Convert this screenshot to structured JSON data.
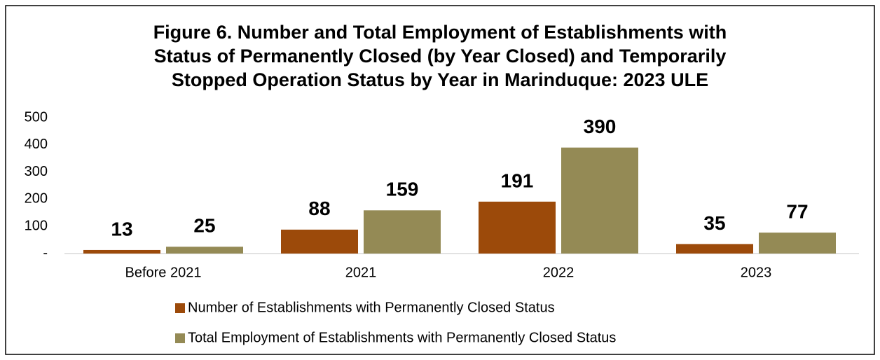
{
  "chart_data": {
    "type": "bar",
    "title": [
      "Figure 6. Number and Total Employment of Establishments with",
      "Status of Permanently Closed (by Year Closed) and Temporarily",
      "Stopped Operation Status by Year in Marinduque: 2023 ULE"
    ],
    "categories": [
      "Before 2021",
      "2021",
      "2022",
      "2023"
    ],
    "series": [
      {
        "name": "Number of Establishments with Permanently Closed Status",
        "color": "#9c4a0a",
        "values": [
          13,
          88,
          191,
          35
        ]
      },
      {
        "name": "Total Employment of Establishments with Permanently Closed Status",
        "color": "#948a55",
        "values": [
          25,
          159,
          390,
          77
        ]
      }
    ],
    "ylim": [
      0,
      500
    ],
    "yticks": [
      {
        "value": 0,
        "label": "-"
      },
      100,
      200,
      300,
      400,
      500
    ],
    "grid": false,
    "legend": "bottom"
  }
}
